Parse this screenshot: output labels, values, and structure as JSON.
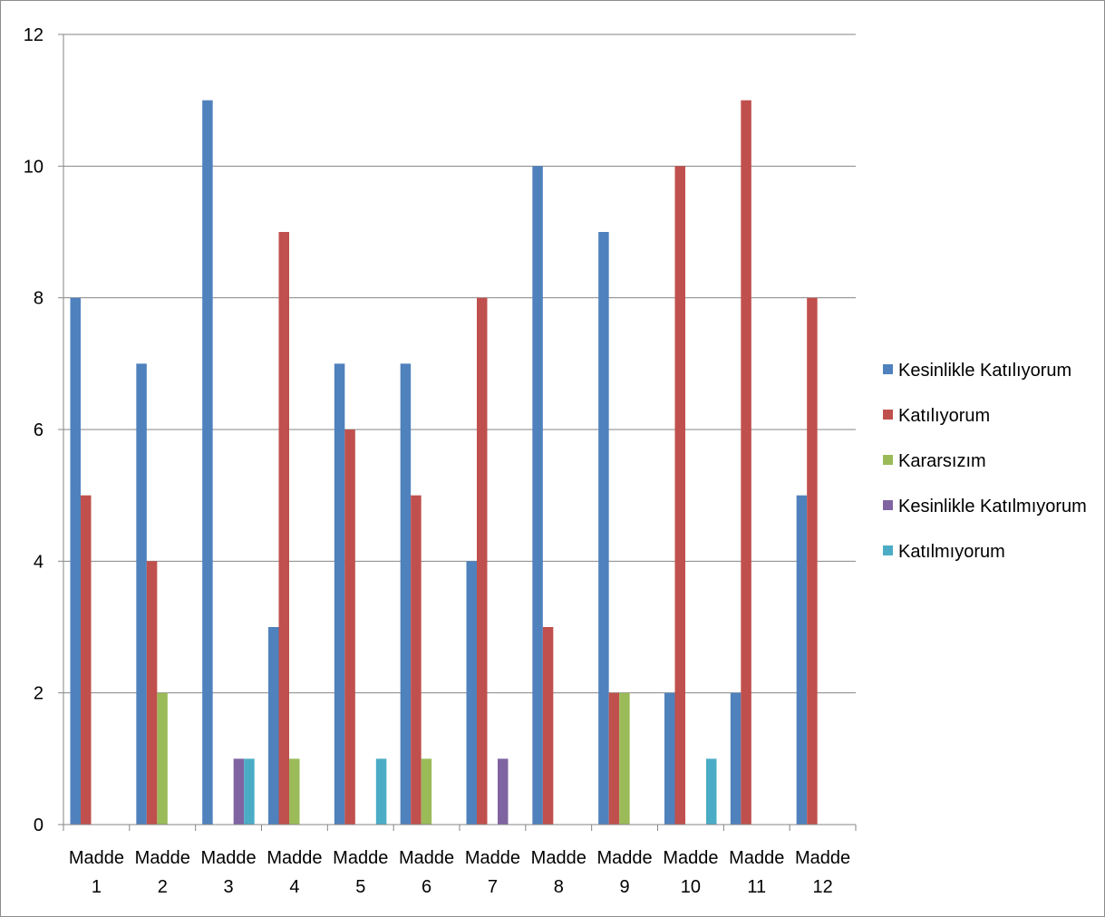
{
  "chart_data": {
    "type": "bar",
    "categories": [
      [
        "Madde",
        "1"
      ],
      [
        "Madde",
        "2"
      ],
      [
        "Madde",
        "3"
      ],
      [
        "Madde",
        "4"
      ],
      [
        "Madde",
        "5"
      ],
      [
        "Madde",
        "6"
      ],
      [
        "Madde",
        "7"
      ],
      [
        "Madde",
        "8"
      ],
      [
        "Madde",
        "9"
      ],
      [
        "Madde",
        "10"
      ],
      [
        "Madde",
        "11"
      ],
      [
        "Madde",
        "12"
      ]
    ],
    "series": [
      {
        "name": "Kesinlikle Katılıyorum",
        "color": "#4f81bd",
        "values": [
          8,
          7,
          11,
          3,
          7,
          7,
          4,
          10,
          9,
          2,
          2,
          5
        ]
      },
      {
        "name": "Katılıyorum",
        "color": "#c0504d",
        "values": [
          5,
          4,
          0,
          9,
          6,
          5,
          8,
          3,
          2,
          10,
          11,
          8
        ]
      },
      {
        "name": "Kararsızım",
        "color": "#9bbb59",
        "values": [
          0,
          2,
          0,
          1,
          0,
          1,
          0,
          0,
          2,
          0,
          0,
          0
        ]
      },
      {
        "name": "Kesinlikle Katılmıyorum",
        "color": "#8064a2",
        "values": [
          0,
          0,
          1,
          0,
          0,
          0,
          1,
          0,
          0,
          0,
          0,
          0
        ]
      },
      {
        "name": "Katılmıyorum",
        "color": "#4bacc6",
        "values": [
          0,
          0,
          1,
          0,
          1,
          0,
          0,
          0,
          0,
          1,
          0,
          0
        ]
      }
    ],
    "yticks": [
      "0",
      "2",
      "4",
      "6",
      "8",
      "10",
      "12"
    ],
    "ylim": [
      0,
      12
    ],
    "grid": true,
    "legend": "right"
  }
}
